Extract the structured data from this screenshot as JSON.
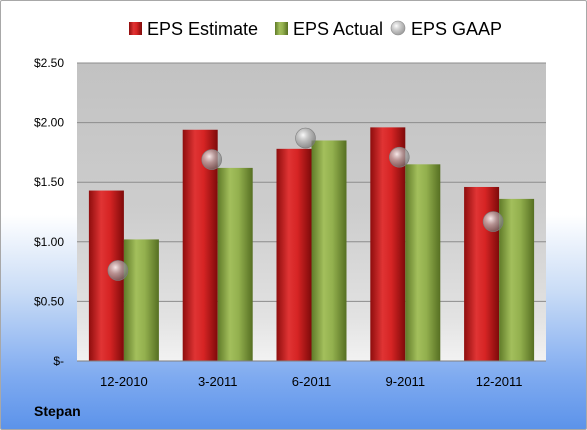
{
  "company": "Stepan",
  "chart_data": {
    "type": "bar",
    "categories": [
      "12-2010",
      "3-2011",
      "6-2011",
      "9-2011",
      "12-2011"
    ],
    "series": [
      {
        "name": "EPS Estimate",
        "type": "bar",
        "color": "#cc1f1f",
        "values": [
          1.43,
          1.94,
          1.78,
          1.96,
          1.46
        ]
      },
      {
        "name": "EPS Actual",
        "type": "bar",
        "color": "#8aa64a",
        "values": [
          1.02,
          1.62,
          1.85,
          1.65,
          1.36
        ]
      },
      {
        "name": "EPS GAAP",
        "type": "scatter",
        "color": "#a9a9a9",
        "values": [
          0.76,
          1.69,
          1.87,
          1.71,
          1.17
        ]
      }
    ],
    "yticks": [
      "$-",
      "$0.50",
      "$1.00",
      "$1.50",
      "$2.00",
      "$2.50"
    ],
    "ylim": [
      0,
      2.5
    ],
    "grid": true,
    "legend_position": "top",
    "xlabel": "",
    "ylabel": ""
  }
}
